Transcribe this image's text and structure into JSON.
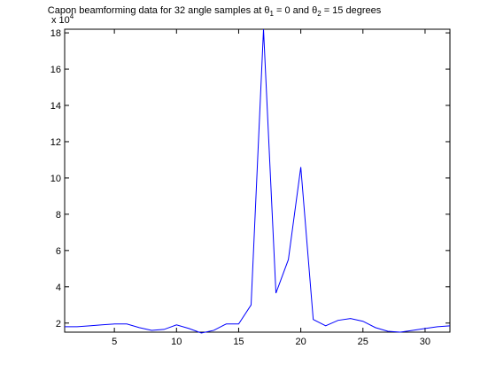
{
  "chart_data": {
    "type": "line",
    "title": {
      "prefix": "Capon beamforming data for 32 angle samples at ",
      "theta": "θ",
      "sub1": "1",
      "mid": " = 0 and ",
      "sub2": "2",
      "suffix": " = 15 degrees"
    },
    "exponent_label": {
      "base": "x 10",
      "power": "4"
    },
    "xlabel": "",
    "ylabel": "",
    "xlim": [
      1,
      32
    ],
    "ylim": [
      1.5,
      18.2
    ],
    "xticks": [
      5,
      10,
      15,
      20,
      25,
      30
    ],
    "yticks": [
      2,
      4,
      6,
      8,
      10,
      12,
      14,
      16,
      18
    ],
    "grid": false,
    "series": [
      {
        "color": "#0000ff",
        "x": [
          1,
          2,
          3,
          4,
          5,
          6,
          7,
          8,
          9,
          10,
          11,
          12,
          13,
          14,
          15,
          16,
          17,
          18,
          19,
          20,
          21,
          22,
          23,
          24,
          25,
          26,
          27,
          28,
          29,
          30,
          31,
          32
        ],
        "y": [
          1.8,
          1.8,
          1.85,
          1.9,
          1.95,
          1.95,
          1.75,
          1.6,
          1.65,
          1.9,
          1.7,
          1.45,
          1.6,
          1.95,
          1.95,
          3.0,
          18.2,
          3.65,
          5.5,
          10.6,
          2.2,
          1.85,
          2.15,
          2.25,
          2.1,
          1.75,
          1.55,
          1.5,
          1.6,
          1.7,
          1.8,
          1.85
        ]
      }
    ]
  }
}
